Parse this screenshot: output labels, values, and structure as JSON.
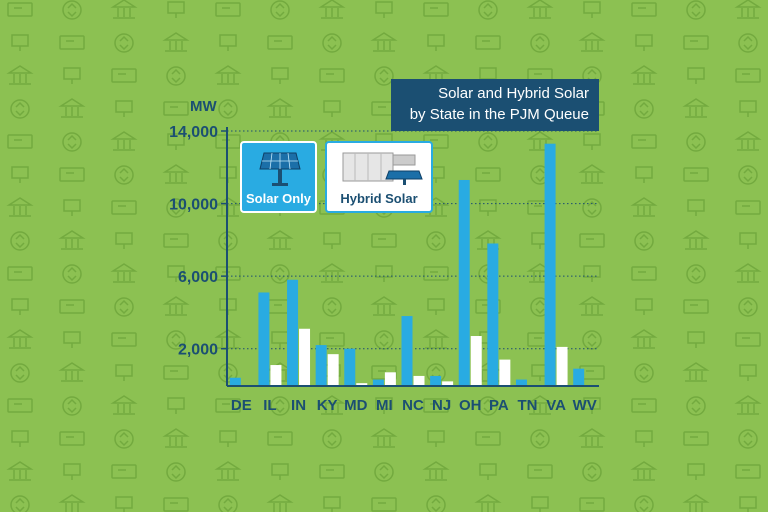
{
  "chart_data": {
    "type": "bar",
    "title": "Solar and Hybrid Solar\nby State in the PJM Queue",
    "title_lines": [
      "Solar and Hybrid Solar",
      "by State in the PJM Queue"
    ],
    "ylabel": "MW",
    "ylim": [
      0,
      14000
    ],
    "yticks": [
      2000,
      6000,
      10000,
      14000
    ],
    "ytick_labels": [
      "2,000",
      "6,000",
      "10,000",
      "14,000"
    ],
    "grid": "dotted horizontal",
    "legend_placement": "top-left",
    "categories": [
      "DE",
      "IL",
      "IN",
      "KY",
      "MD",
      "MI",
      "NC",
      "NJ",
      "OH",
      "PA",
      "TN",
      "VA",
      "WV"
    ],
    "series": [
      {
        "name": "Solar Only",
        "color": "#29abe2",
        "values": [
          400,
          5100,
          5800,
          2200,
          2000,
          300,
          3800,
          500,
          11300,
          7800,
          300,
          13300,
          900
        ]
      },
      {
        "name": "Hybrid Solar",
        "color": "#ffffff",
        "values": [
          0,
          1100,
          3100,
          1700,
          100,
          700,
          500,
          200,
          2700,
          1400,
          0,
          2100,
          0
        ]
      }
    ]
  },
  "colors": {
    "background": "#8cc152",
    "pattern": "#73aa3f",
    "axis": "#1b4f72",
    "title_box": "#1b4f72"
  }
}
